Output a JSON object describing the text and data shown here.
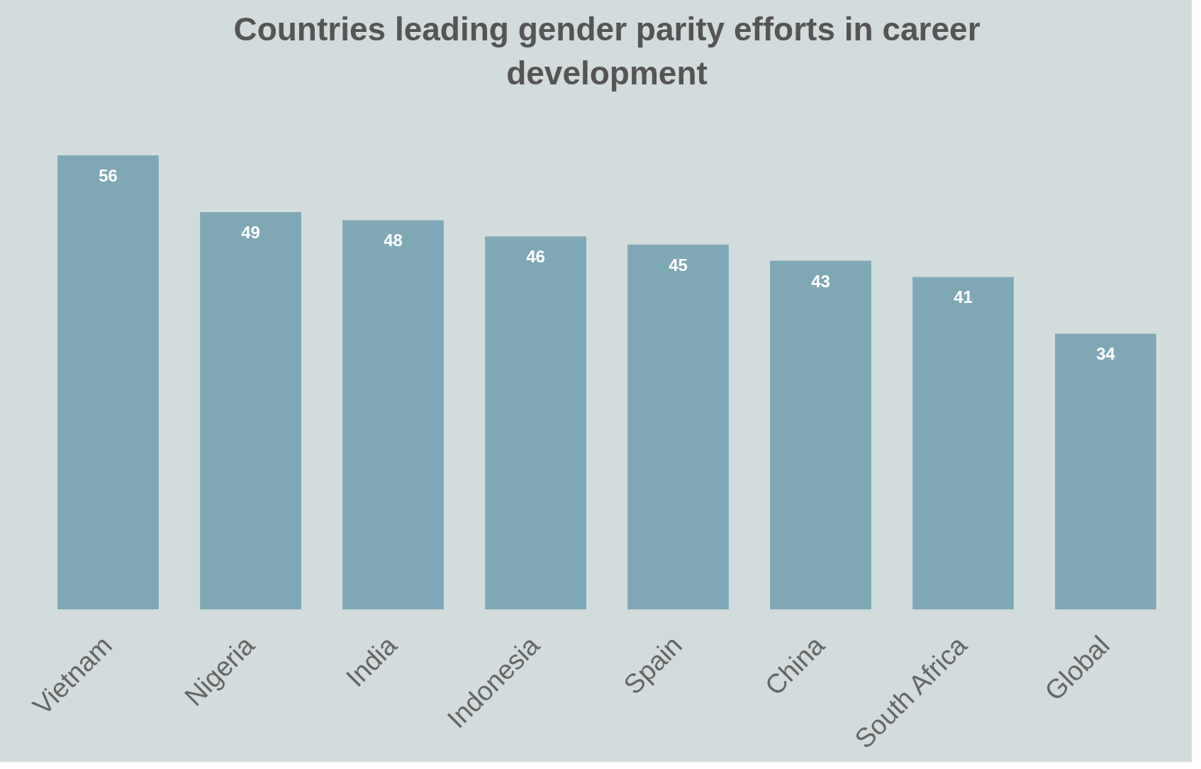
{
  "chart_data": {
    "type": "bar",
    "title": "Countries leading gender parity efforts in career development",
    "categories": [
      "Vietnam",
      "Nigeria",
      "India",
      "Indonesia",
      "Spain",
      "China",
      "South Africa",
      "Global"
    ],
    "values": [
      56,
      49,
      48,
      46,
      45,
      43,
      41,
      34
    ],
    "color": "#7ea8b5",
    "data_labels": true
  }
}
